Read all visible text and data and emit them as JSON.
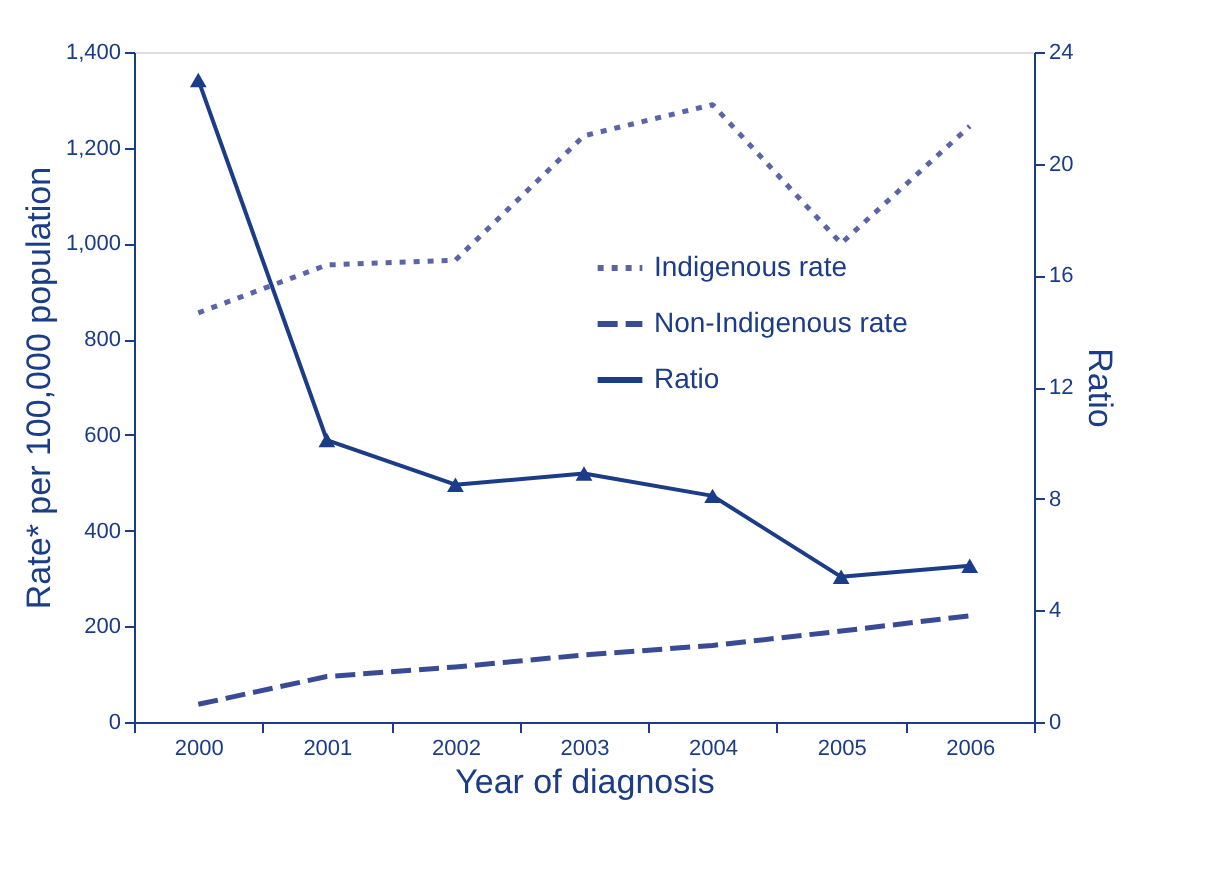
{
  "chart_data": {
    "type": "line",
    "xlabel": "Year of diagnosis",
    "ylabel": "Rate* per 100,000 population",
    "y2label": "Ratio",
    "categories": [
      "2000",
      "2001",
      "2002",
      "2003",
      "2004",
      "2005",
      "2006"
    ],
    "series": [
      {
        "name": "Indigenous rate",
        "color": "#5c64a8",
        "line_style": "dotted",
        "values": [
          855,
          955,
          965,
          1225,
          1290,
          1000,
          1245
        ]
      },
      {
        "name": "Non-Indigenous rate",
        "color": "#3a4b96",
        "line_style": "dashed",
        "values": [
          37,
          95,
          115,
          140,
          160,
          190,
          222
        ]
      },
      {
        "name": "Ratio",
        "color": "#1b3c87",
        "line_style": "solid",
        "marker": "triangle",
        "axis": "y2",
        "values": [
          23.0,
          10.1,
          8.5,
          8.9,
          8.1,
          5.2,
          5.6
        ]
      }
    ],
    "ylim": [
      0,
      1400
    ],
    "yticks": [
      {
        "value": 0,
        "label": "0"
      },
      {
        "value": 200,
        "label": "200"
      },
      {
        "value": 400,
        "label": "400"
      },
      {
        "value": 600,
        "label": "600"
      },
      {
        "value": 800,
        "label": "800"
      },
      {
        "value": 1000,
        "label": "1,000"
      },
      {
        "value": 1200,
        "label": "1,200"
      },
      {
        "value": 1400,
        "label": "1,400"
      }
    ],
    "y2lim": [
      0,
      24
    ],
    "y2ticks": [
      0,
      4,
      8,
      12,
      16,
      20,
      24
    ],
    "legend": "right",
    "grid": false
  }
}
